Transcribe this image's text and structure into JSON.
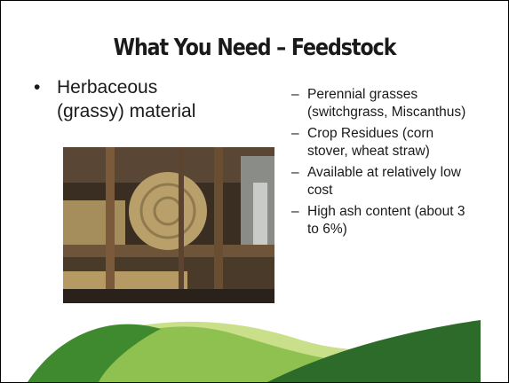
{
  "slide": {
    "title": "What You Need – Feedstock",
    "bullet": "Herbaceous (grassy) material",
    "sub_bullets": [
      "Perennial grasses (switchgrass, Miscanthus)",
      "Crop Residues (corn stover, wheat straw)",
      "Available at relatively low cost",
      "High ash content (about 3 to 6%)"
    ]
  }
}
